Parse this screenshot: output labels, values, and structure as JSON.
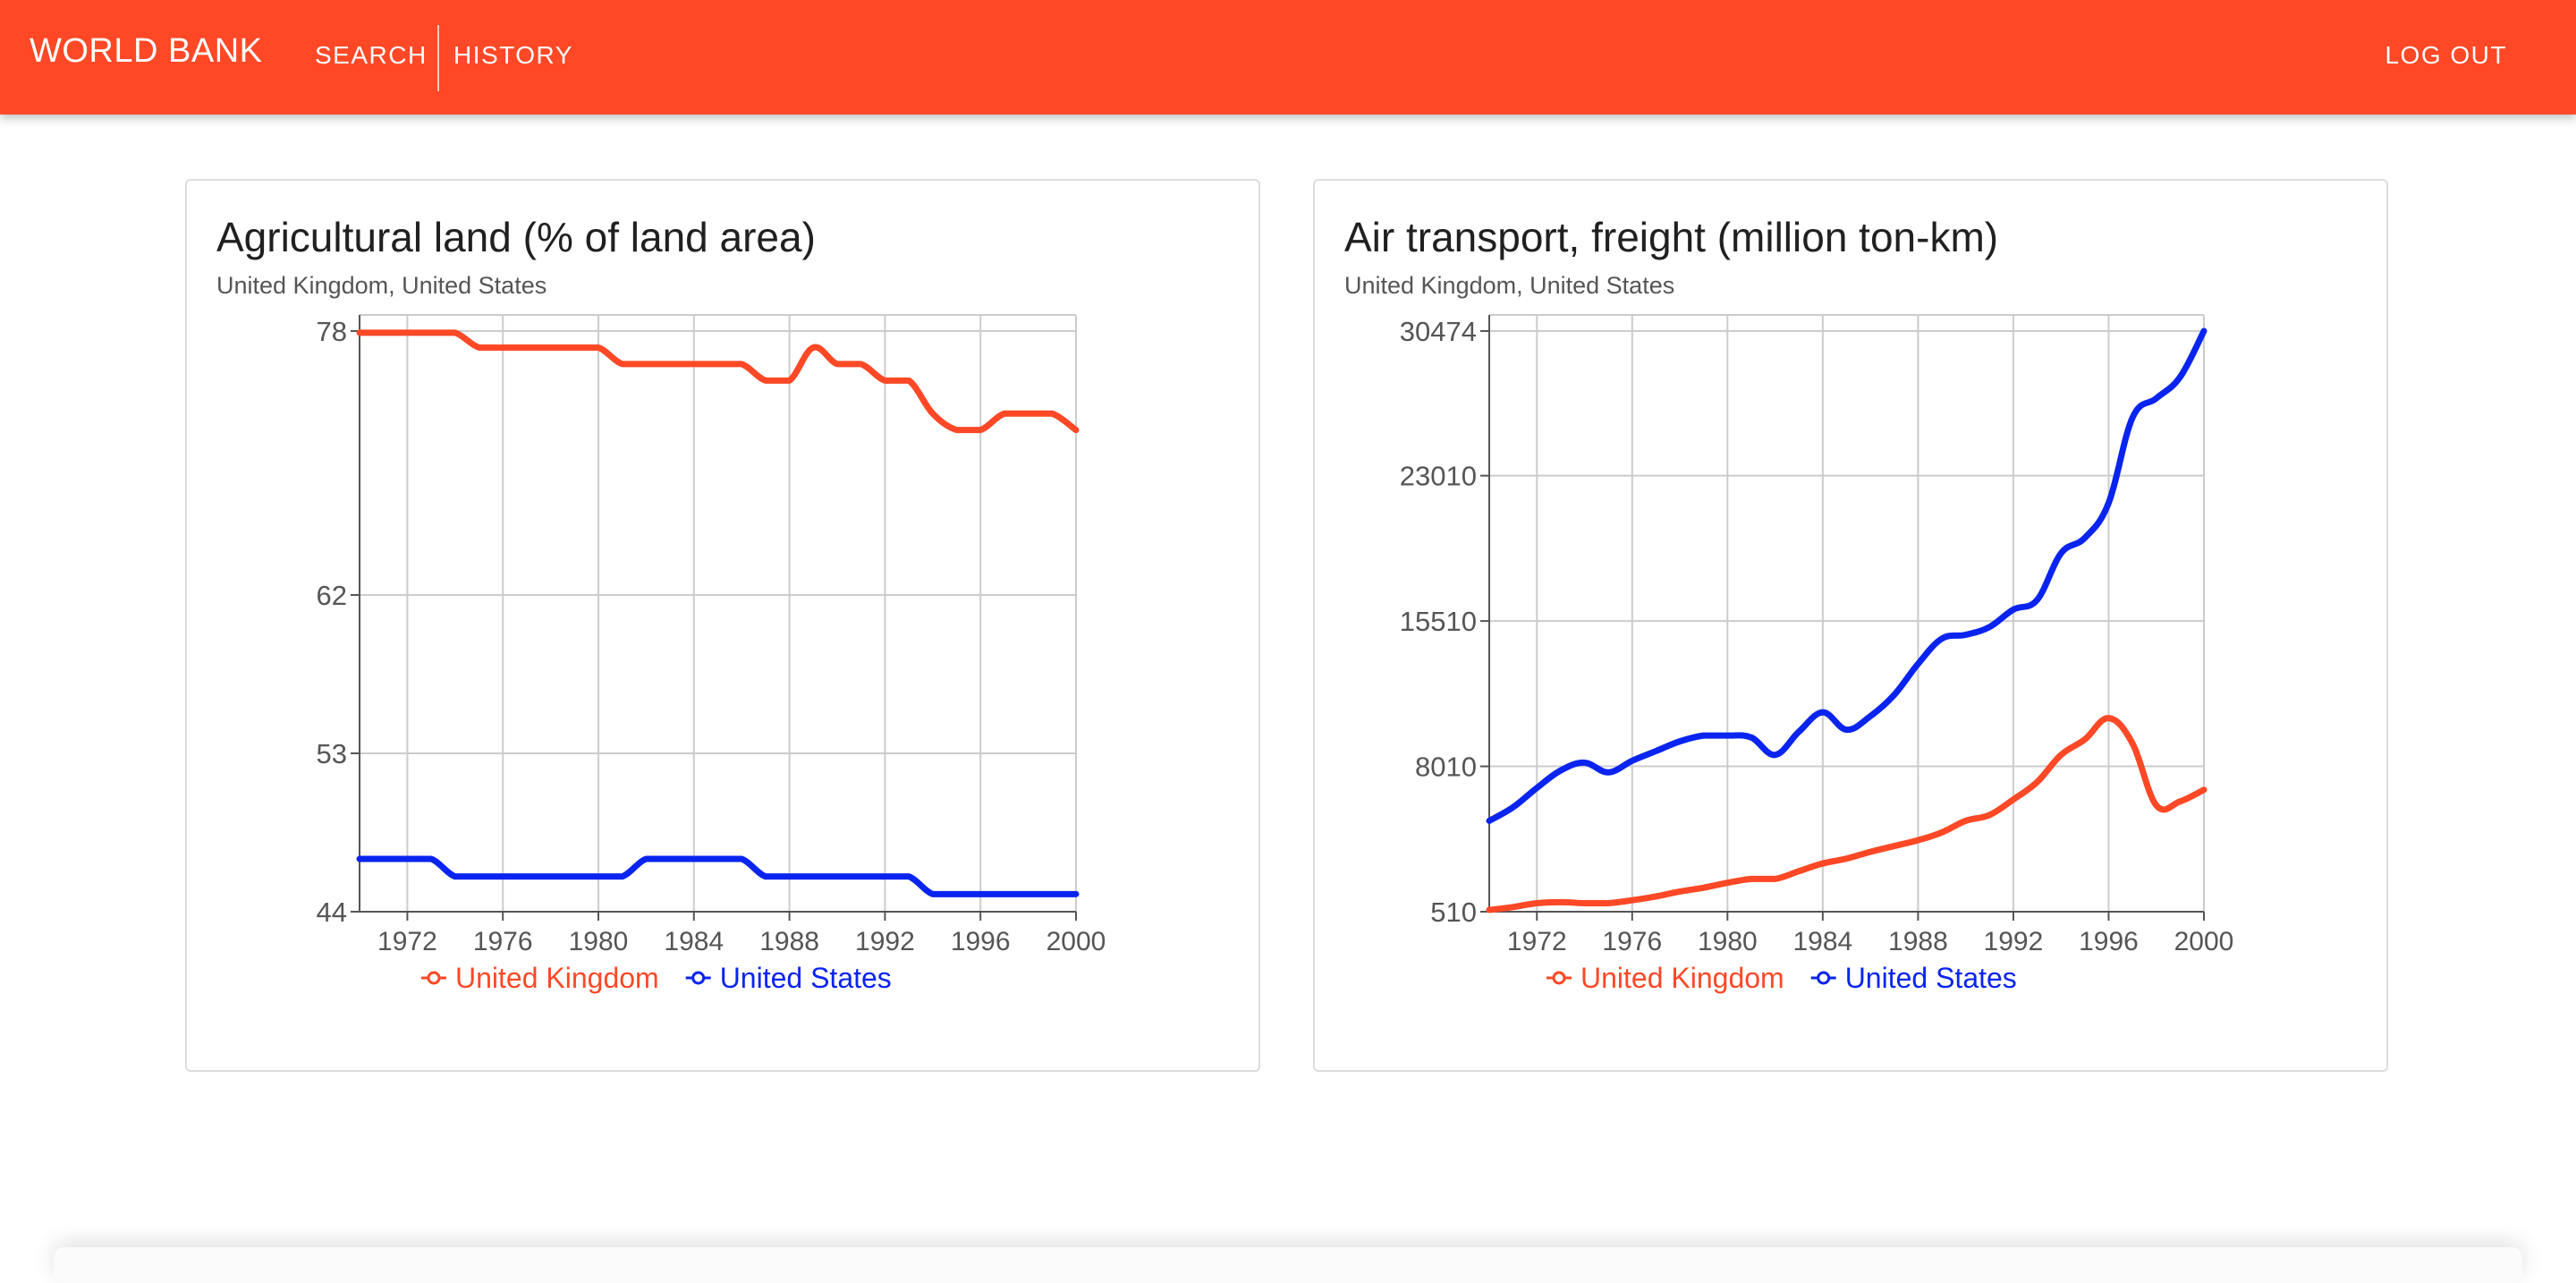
{
  "header": {
    "brand": "WORLD BANK",
    "nav_search": "SEARCH",
    "nav_history": "HISTORY",
    "logout": "LOG OUT",
    "color": "#ff4826"
  },
  "charts": [
    {
      "title": "Agricultural land (% of land area)",
      "subtitle": "United Kingdom, United States"
    },
    {
      "title": "Air transport, freight (million ton-km)",
      "subtitle": "United Kingdom, United States"
    }
  ],
  "chart_data": [
    {
      "type": "line",
      "title": "Agricultural land (% of land area)",
      "subtitle": "United Kingdom, United States",
      "xlabel": "",
      "ylabel": "",
      "x": [
        1970,
        1971,
        1972,
        1973,
        1974,
        1975,
        1976,
        1977,
        1978,
        1979,
        1980,
        1981,
        1982,
        1983,
        1984,
        1985,
        1986,
        1987,
        1988,
        1989,
        1990,
        1991,
        1992,
        1993,
        1994,
        1995,
        1996,
        1997,
        1998,
        1999,
        2000
      ],
      "xlim": [
        1970,
        2000
      ],
      "xticks": [
        "1972",
        "1976",
        "1980",
        "1984",
        "1988",
        "1992",
        "1996",
        "2000"
      ],
      "ylim": [
        44,
        78
      ],
      "yticks": [
        "44",
        "53",
        "62",
        "78"
      ],
      "grid": true,
      "legend": "bottom-center",
      "series": [
        {
          "name": "United Kingdom",
          "color": "#ff4826",
          "values": [
            77.9,
            77.9,
            77.9,
            77.9,
            77.9,
            77.0,
            77.0,
            77.0,
            77.0,
            77.0,
            77.0,
            76.0,
            76.0,
            76.0,
            76.0,
            76.0,
            76.0,
            75.0,
            75.0,
            77.0,
            76.0,
            76.0,
            75.0,
            75.0,
            73.0,
            72.0,
            72.0,
            73.0,
            73.0,
            73.0,
            72.0
          ]
        },
        {
          "name": "United States",
          "color": "#0a24f0",
          "values": [
            47.0,
            47.0,
            47.0,
            47.0,
            46.0,
            46.0,
            46.0,
            46.0,
            46.0,
            46.0,
            46.0,
            46.0,
            47.0,
            47.0,
            47.0,
            47.0,
            47.0,
            46.0,
            46.0,
            46.0,
            46.0,
            46.0,
            46.0,
            46.0,
            45.0,
            45.0,
            45.0,
            45.0,
            45.0,
            45.0,
            45.0
          ]
        }
      ]
    },
    {
      "type": "line",
      "title": "Air transport, freight (million ton-km)",
      "subtitle": "United Kingdom, United States",
      "xlabel": "",
      "ylabel": "",
      "x": [
        1970,
        1971,
        1972,
        1973,
        1974,
        1975,
        1976,
        1977,
        1978,
        1979,
        1980,
        1981,
        1982,
        1983,
        1984,
        1985,
        1986,
        1987,
        1988,
        1989,
        1990,
        1991,
        1992,
        1993,
        1994,
        1995,
        1996,
        1997,
        1998,
        1999,
        2000
      ],
      "xlim": [
        1970,
        2000
      ],
      "xticks": [
        "1972",
        "1976",
        "1980",
        "1984",
        "1988",
        "1992",
        "1996",
        "2000"
      ],
      "ylim": [
        510,
        30474
      ],
      "yticks": [
        "510",
        "8010",
        "15510",
        "23010",
        "30474"
      ],
      "grid": true,
      "legend": "bottom-center",
      "series": [
        {
          "name": "United Kingdom",
          "color": "#ff4826",
          "values": [
            600,
            750,
            950,
            1000,
            950,
            950,
            1100,
            1300,
            1550,
            1750,
            2000,
            2200,
            2200,
            2600,
            3000,
            3250,
            3600,
            3900,
            4200,
            4600,
            5200,
            5500,
            6300,
            7200,
            8600,
            9400,
            10500,
            9200,
            6000,
            6200,
            6800
          ]
        },
        {
          "name": "United States",
          "color": "#0a24f0",
          "values": [
            5200,
            5900,
            6900,
            7800,
            8200,
            7700,
            8300,
            8800,
            9300,
            9600,
            9600,
            9500,
            8600,
            9800,
            10800,
            9900,
            10600,
            11700,
            13300,
            14600,
            14800,
            15200,
            16100,
            16600,
            19000,
            19800,
            21600,
            26000,
            27000,
            28100,
            30474
          ]
        }
      ]
    }
  ]
}
